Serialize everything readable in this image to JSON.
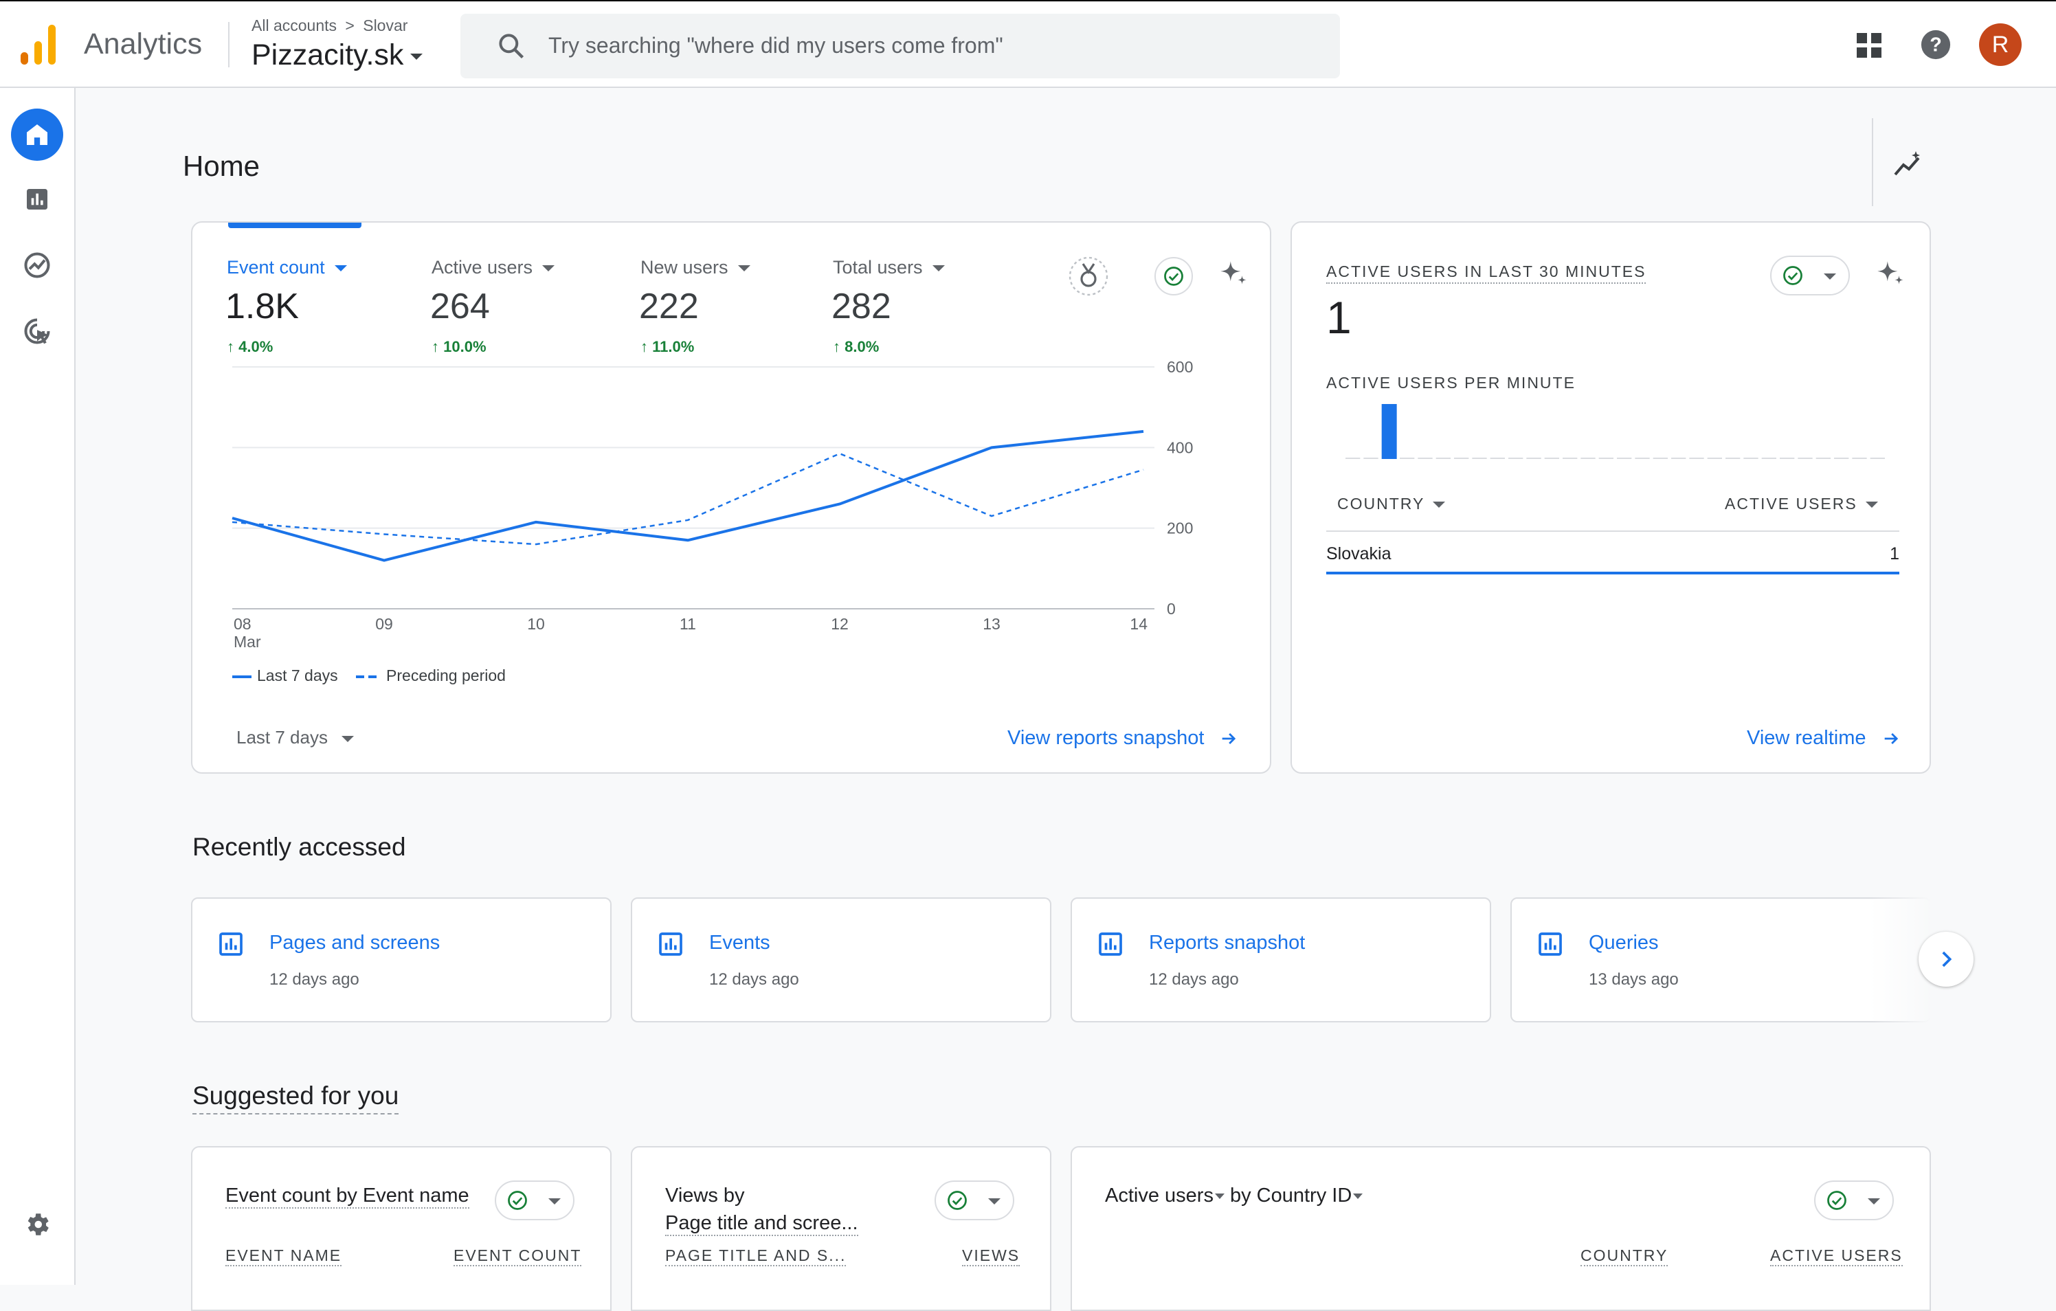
{
  "header": {
    "app_name": "Analytics",
    "breadcrumb_all": "All accounts",
    "breadcrumb_sep": ">",
    "breadcrumb_account": "Slovar",
    "property_name": "Pizzacity.sk",
    "search_placeholder": "Try searching \"where did my users come from\"",
    "avatar_letter": "R"
  },
  "page": {
    "title": "Home"
  },
  "metrics": [
    {
      "label": "Event count",
      "value": "1.8K",
      "delta": "4.0%"
    },
    {
      "label": "Active users",
      "value": "264",
      "delta": "10.0%"
    },
    {
      "label": "New users",
      "value": "222",
      "delta": "11.0%"
    },
    {
      "label": "Total users",
      "value": "282",
      "delta": "8.0%"
    }
  ],
  "chart_data": {
    "type": "line",
    "x": [
      "08\nMar",
      "09",
      "10",
      "11",
      "12",
      "13",
      "14"
    ],
    "x_tick_labels": [
      "08",
      "09",
      "10",
      "11",
      "12",
      "13",
      "14"
    ],
    "x_sublabel": "Mar",
    "ylim": [
      0,
      600
    ],
    "y_ticks": [
      "600",
      "400",
      "200",
      "0"
    ],
    "series": [
      {
        "name": "Last 7 days",
        "style": "solid",
        "values": [
          225,
          120,
          215,
          170,
          260,
          400,
          440
        ]
      },
      {
        "name": "Preceding period",
        "style": "dashed",
        "values": [
          215,
          185,
          160,
          220,
          385,
          230,
          345
        ]
      }
    ],
    "color": "#1a73e8"
  },
  "overview": {
    "date_range": "Last 7 days",
    "link": "View reports snapshot"
  },
  "realtime": {
    "title": "ACTIVE USERS IN LAST 30 MINUTES",
    "value": "1",
    "per_minute_label": "ACTIVE USERS PER MINUTE",
    "per_minute_values": [
      0,
      0,
      1,
      0,
      0,
      0,
      0,
      0,
      0,
      0,
      0,
      0,
      0,
      0,
      0,
      0,
      0,
      0,
      0,
      0,
      0,
      0,
      0,
      0,
      0,
      0,
      0,
      0,
      0,
      0
    ],
    "col_country": "COUNTRY",
    "col_active": "ACTIVE USERS",
    "rows": [
      {
        "country": "Slovakia",
        "value": "1"
      }
    ],
    "link": "View realtime"
  },
  "recent": {
    "title": "Recently accessed",
    "items": [
      {
        "title": "Pages and screens",
        "time": "12 days ago"
      },
      {
        "title": "Events",
        "time": "12 days ago"
      },
      {
        "title": "Reports snapshot",
        "time": "12 days ago"
      },
      {
        "title": "Queries",
        "time": "13 days ago"
      }
    ]
  },
  "suggested": {
    "title": "Suggested for you",
    "cards": [
      {
        "title_a": "Event count by Event name",
        "col_a": "EVENT NAME",
        "col_b": "EVENT COUNT"
      },
      {
        "title_a": "Views by",
        "title_b": "Page title and scree...",
        "col_a": "PAGE TITLE AND S...",
        "col_b": "VIEWS"
      },
      {
        "title_metric": "Active users",
        "title_by": "by",
        "title_dim": "Country ID",
        "col_a": "COUNTRY",
        "col_b": "ACTIVE USERS"
      }
    ]
  },
  "colors": {
    "accent": "#1a73e8",
    "positive": "#188038",
    "avatar": "#c5471a"
  }
}
